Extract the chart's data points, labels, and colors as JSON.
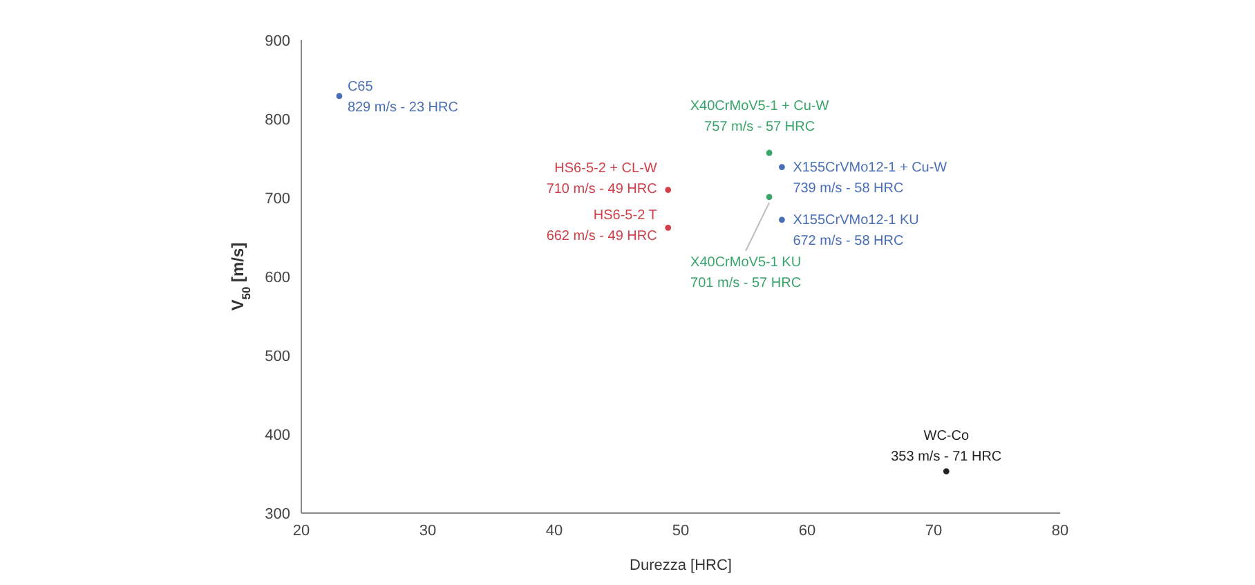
{
  "chart_data": {
    "type": "scatter",
    "xlabel": "Durezza [HRC]",
    "ylabel": "V$_{50}$ [m/s]",
    "xlim": [
      20,
      80
    ],
    "xticks": [
      20,
      30,
      40,
      50,
      60,
      70,
      80
    ],
    "ylim": [
      300,
      900
    ],
    "yticks": [
      300,
      400,
      500,
      600,
      700,
      800,
      900
    ],
    "grid": false,
    "marker": "circle",
    "series": [
      {
        "color": "#4a6fb5",
        "x": [
          23
        ],
        "values": [
          829
        ]
      },
      {
        "color": "#d0404a",
        "x": [
          49
        ],
        "values": [
          710
        ]
      },
      {
        "color": "#d0404a",
        "x": [
          49
        ],
        "values": [
          662
        ]
      },
      {
        "color": "#3aa56a",
        "x": [
          57
        ],
        "values": [
          757
        ]
      },
      {
        "color": "#4a6fb5",
        "x": [
          58
        ],
        "values": [
          739
        ]
      },
      {
        "color": "#4a6fb5",
        "x": [
          58
        ],
        "values": [
          672
        ]
      },
      {
        "color": "#3aa56a",
        "x": [
          57
        ],
        "values": [
          701
        ]
      },
      {
        "color": "#222222",
        "x": [
          71
        ],
        "values": [
          353
        ]
      }
    ],
    "annotations": [
      {
        "text": "C65\n829 m/s - 23 HRC",
        "x": 23,
        "y": 829
      },
      {
        "text": "HS6-5-2 + CL-W\n710 m/s - 49 HRC",
        "x": 49,
        "y": 710
      },
      {
        "text": "HS6-5-2 T\n662 m/s - 49 HRC",
        "x": 49,
        "y": 662
      },
      {
        "text": "X40CrMoV5-1 + Cu-W\n757 m/s - 57 HRC",
        "x": 57,
        "y": 757
      },
      {
        "text": "X155CrVMo12-1 + Cu-W\n739 m/s - 58 HRC",
        "x": 58,
        "y": 739
      },
      {
        "text": "X155CrVMo12-1 KU\n672 m/s - 58 HRC",
        "x": 58,
        "y": 672
      },
      {
        "text": "X40CrMoV5-1 KU\n701 m/s - 57 HRC",
        "x": 57,
        "y": 701
      },
      {
        "text": "WC-Co\n353 m/s - 71 HRC",
        "x": 71,
        "y": 353
      }
    ]
  }
}
